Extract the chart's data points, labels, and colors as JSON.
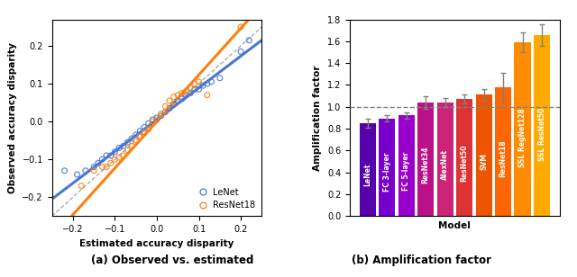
{
  "scatter_lenet_x": [
    -0.22,
    -0.19,
    -0.17,
    -0.15,
    -0.14,
    -0.13,
    -0.12,
    -0.11,
    -0.1,
    -0.09,
    -0.08,
    -0.07,
    -0.06,
    -0.05,
    -0.04,
    -0.03,
    -0.02,
    -0.01,
    0.0,
    0.01,
    0.02,
    0.03,
    0.04,
    0.05,
    0.06,
    0.07,
    0.08,
    0.09,
    0.1,
    0.11,
    0.12,
    0.13,
    0.15,
    0.2,
    0.22
  ],
  "scatter_lenet_y": [
    -0.13,
    -0.14,
    -0.13,
    -0.12,
    -0.11,
    -0.1,
    -0.09,
    -0.09,
    -0.08,
    -0.07,
    -0.065,
    -0.055,
    -0.045,
    -0.035,
    -0.025,
    -0.015,
    -0.005,
    0.005,
    0.01,
    0.015,
    0.025,
    0.035,
    0.045,
    0.055,
    0.06,
    0.07,
    0.075,
    0.085,
    0.085,
    0.095,
    0.1,
    0.105,
    0.115,
    0.185,
    0.215
  ],
  "scatter_resnet_x": [
    -0.18,
    -0.15,
    -0.13,
    -0.12,
    -0.11,
    -0.1,
    -0.09,
    -0.08,
    -0.07,
    -0.06,
    -0.05,
    -0.04,
    -0.03,
    -0.02,
    -0.01,
    0.0,
    0.01,
    0.02,
    0.03,
    0.04,
    0.05,
    0.06,
    0.07,
    0.08,
    0.09,
    0.1,
    0.12,
    0.2
  ],
  "scatter_resnet_y": [
    -0.17,
    -0.13,
    -0.12,
    -0.12,
    -0.11,
    -0.1,
    -0.095,
    -0.09,
    -0.075,
    -0.065,
    -0.05,
    -0.04,
    -0.03,
    -0.02,
    0.0,
    0.005,
    0.02,
    0.04,
    0.055,
    0.065,
    0.07,
    0.075,
    0.08,
    0.09,
    0.1,
    0.105,
    0.07,
    0.25
  ],
  "lenet_line_x": [
    -0.25,
    0.25
  ],
  "lenet_line_y": [
    -0.205,
    0.215
  ],
  "resnet_line_x": [
    -0.215,
    0.215
  ],
  "resnet_line_y": [
    -0.265,
    0.265
  ],
  "lenet_color": "#4878cf",
  "resnet_color": "#ff7f0e",
  "bar_models": [
    "LeNet",
    "FC 3-layer",
    "FC 5-layer",
    "ResNet34",
    "AlexNet",
    "ResNet50",
    "SVM",
    "ResNet18",
    "SSL RegNet128",
    "SSL ResNet50"
  ],
  "bar_values": [
    0.85,
    0.895,
    0.92,
    1.04,
    1.04,
    1.07,
    1.11,
    1.18,
    1.59,
    1.655
  ],
  "bar_errors": [
    0.04,
    0.03,
    0.03,
    0.055,
    0.04,
    0.04,
    0.055,
    0.13,
    0.09,
    0.1
  ],
  "bar_colors": [
    "#5500aa",
    "#7700cc",
    "#9900cc",
    "#bb1188",
    "#cc2277",
    "#dd3333",
    "#ee5500",
    "#ff6600",
    "#ff8c00",
    "#ffaa00"
  ],
  "xlabel_left": "Estimated accuracy disparity",
  "ylabel_left": "Observed accuracy disparity",
  "xlabel_right": "Model",
  "ylabel_right": "Amplification factor",
  "caption_left": "(a) Observed vs. estimated",
  "caption_right": "(b) Amplification factor",
  "xlim_left": [
    -0.25,
    0.25
  ],
  "ylim_left": [
    -0.25,
    0.27
  ],
  "ylim_right": [
    0.0,
    1.8
  ],
  "xticks_left": [
    -0.2,
    -0.1,
    0.0,
    0.1,
    0.2
  ],
  "yticks_left": [
    -0.2,
    -0.1,
    0.0,
    0.1,
    0.2
  ],
  "yticks_right": [
    0.0,
    0.2,
    0.4,
    0.6,
    0.8,
    1.0,
    1.2,
    1.4,
    1.6,
    1.8
  ]
}
